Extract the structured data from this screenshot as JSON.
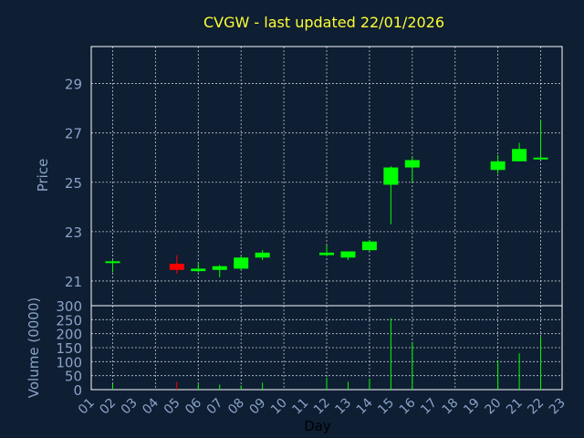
{
  "chart_data": {
    "type": "candlestick",
    "title": "CVGW - last updated 22/01/2026",
    "xlabel": "Day",
    "ylabel": "Price",
    "volume_label": "Volume (0000)",
    "x_ticks": [
      "01",
      "02",
      "03",
      "04",
      "05",
      "06",
      "07",
      "08",
      "09",
      "10",
      "11",
      "12",
      "13",
      "14",
      "15",
      "16",
      "17",
      "18",
      "19",
      "20",
      "21",
      "22",
      "23"
    ],
    "price_ticks": [
      21,
      23,
      25,
      27,
      29
    ],
    "price_ylim": [
      20,
      30.5
    ],
    "volume_ticks": [
      0,
      50,
      100,
      150,
      200,
      250,
      300
    ],
    "volume_ylim": [
      0,
      300
    ],
    "grid": true,
    "up_color": "#00ff00",
    "down_color": "#ff0000",
    "candles": [
      {
        "day": "02",
        "open": 21.75,
        "high": 21.85,
        "low": 21.35,
        "close": 21.8,
        "volume": 20
      },
      {
        "day": "05",
        "open": 21.7,
        "high": 22.05,
        "low": 21.3,
        "close": 21.45,
        "volume": 28
      },
      {
        "day": "06",
        "open": 21.4,
        "high": 21.75,
        "low": 21.35,
        "close": 21.5,
        "volume": 22
      },
      {
        "day": "07",
        "open": 21.45,
        "high": 21.65,
        "low": 21.15,
        "close": 21.6,
        "volume": 18
      },
      {
        "day": "08",
        "open": 21.5,
        "high": 22.0,
        "low": 21.45,
        "close": 21.95,
        "volume": 15
      },
      {
        "day": "09",
        "open": 21.95,
        "high": 22.25,
        "low": 21.85,
        "close": 22.15,
        "volume": 25
      },
      {
        "day": "12",
        "open": 22.05,
        "high": 22.45,
        "low": 22.0,
        "close": 22.15,
        "volume": 42
      },
      {
        "day": "13",
        "open": 21.95,
        "high": 22.2,
        "low": 21.85,
        "close": 22.2,
        "volume": 28
      },
      {
        "day": "14",
        "open": 22.25,
        "high": 22.65,
        "low": 22.2,
        "close": 22.6,
        "volume": 40
      },
      {
        "day": "15",
        "open": 24.9,
        "high": 25.65,
        "low": 23.3,
        "close": 25.6,
        "volume": 255
      },
      {
        "day": "16",
        "open": 25.6,
        "high": 26.05,
        "low": 25.0,
        "close": 25.9,
        "volume": 170
      },
      {
        "day": "20",
        "open": 25.5,
        "high": 26.1,
        "low": 25.35,
        "close": 25.85,
        "volume": 105
      },
      {
        "day": "21",
        "open": 25.85,
        "high": 26.6,
        "low": 25.85,
        "close": 26.35,
        "volume": 130
      },
      {
        "day": "22",
        "open": 25.95,
        "high": 27.5,
        "low": 25.9,
        "close": 26.0,
        "volume": 188
      }
    ]
  }
}
